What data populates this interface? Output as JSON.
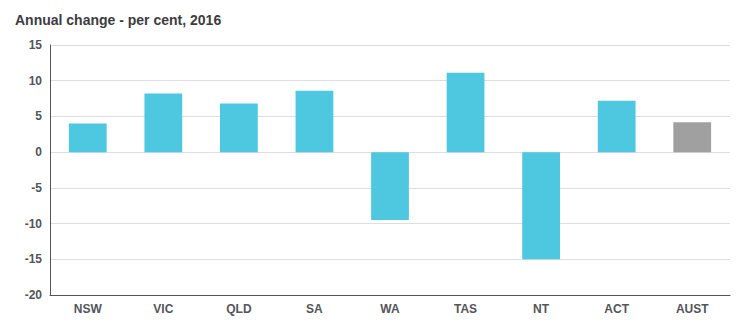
{
  "chart_data": {
    "type": "bar",
    "title": "Annual change - per cent, 2016",
    "categories": [
      "NSW",
      "VIC",
      "QLD",
      "SA",
      "WA",
      "TAS",
      "NT",
      "ACT",
      "AUST"
    ],
    "values": [
      4.0,
      8.2,
      6.8,
      8.6,
      -9.5,
      11.1,
      -15.0,
      7.2,
      4.2
    ],
    "colors": [
      "#4DC8E0",
      "#4DC8E0",
      "#4DC8E0",
      "#4DC8E0",
      "#4DC8E0",
      "#4DC8E0",
      "#4DC8E0",
      "#4DC8E0",
      "#A0A0A0"
    ],
    "ylim": [
      -20,
      15
    ],
    "yticks": [
      -20,
      -15,
      -10,
      -5,
      0,
      5,
      10,
      15
    ],
    "grid": true
  }
}
